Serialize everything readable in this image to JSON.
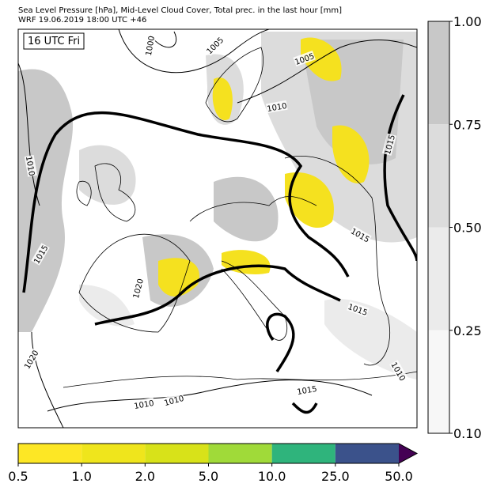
{
  "header": {
    "line1": "Sea Level Pressure [hPa], Mid-Level Cloud Cover, Total prec. in the last hour [mm]",
    "line2": "WRF 19.06.2019 18:00 UTC +46"
  },
  "map": {
    "time_label": "16 UTC Fri",
    "isobar_labels": [
      "1000",
      "1005",
      "1005",
      "1010",
      "1010",
      "1015",
      "1015",
      "1015",
      "1015",
      "1020",
      "1020",
      "1010",
      "1010",
      "1015",
      "1010"
    ]
  },
  "cloud_colorbar": {
    "ticks": [
      "1.00",
      "0.75",
      "0.50",
      "0.25",
      "0.10"
    ]
  },
  "precip_colorbar": {
    "ticks": [
      "0.5",
      "1.0",
      "2.0",
      "5.0",
      "10.0",
      "25.0",
      "50.0"
    ]
  }
}
